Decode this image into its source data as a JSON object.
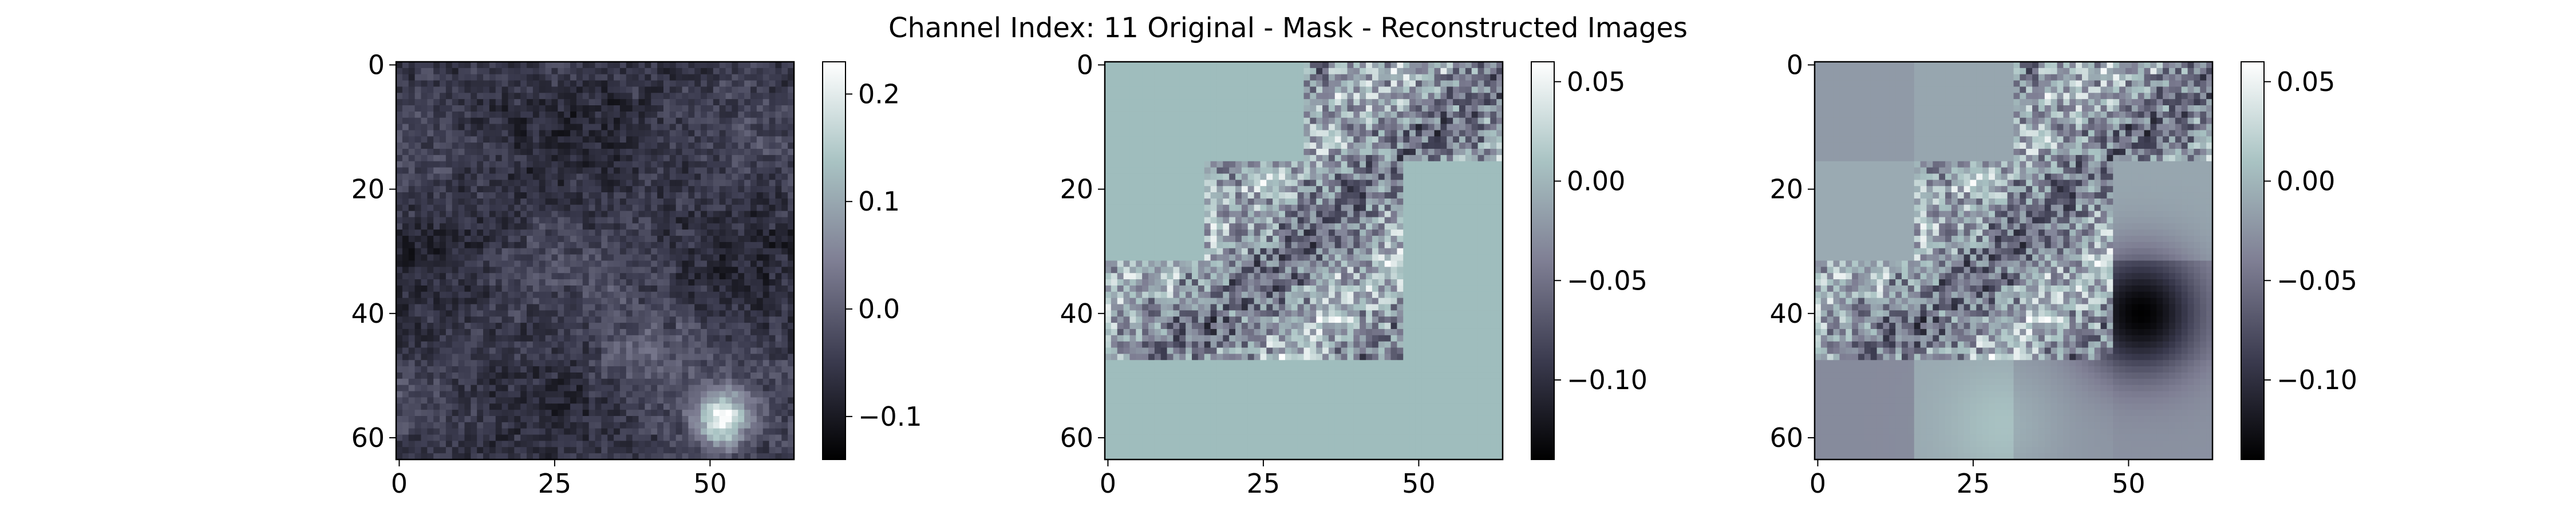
{
  "figure": {
    "title": "Channel Index: 11 Original - Mask - Reconstructed Images"
  },
  "colors": {
    "cmap": [
      "#000000",
      "#3b3b4f",
      "#7f7f94",
      "#a9c3c3",
      "#ffffff"
    ],
    "mask_fill": "#9fbdbd"
  },
  "chart_data": [
    {
      "type": "heatmap",
      "name": "original",
      "grid_size": 64,
      "xlim": [
        0,
        63
      ],
      "ylim": [
        63,
        0
      ],
      "x_ticks": [
        0,
        25,
        50
      ],
      "y_ticks": [
        0,
        20,
        40,
        60
      ],
      "colorbar": {
        "range": [
          -0.14,
          0.23
        ],
        "ticks": [
          0.2,
          0.1,
          0.0,
          -0.1
        ],
        "tick_labels": [
          "0.2",
          "0.1",
          "0.0",
          "−0.1"
        ]
      },
      "mask_regions": [],
      "visible_blocks": "all",
      "notes": "mostly dark purple-gray values, bright spot near (x=52, y=57)"
    },
    {
      "type": "heatmap",
      "name": "mask",
      "grid_size": 64,
      "xlim": [
        0,
        63
      ],
      "ylim": [
        63,
        0
      ],
      "x_ticks": [
        0,
        25,
        50
      ],
      "y_ticks": [
        0,
        20,
        40,
        60
      ],
      "colorbar": {
        "range": [
          -0.14,
          0.06
        ],
        "ticks": [
          0.05,
          0.0,
          -0.05,
          -0.1
        ],
        "tick_labels": [
          "0.05",
          "0.00",
          "−0.05",
          "−0.10"
        ]
      },
      "patch_size": 16,
      "visible_patches": [
        [
          0,
          2
        ],
        [
          0,
          3
        ],
        [
          1,
          1
        ],
        [
          1,
          2
        ],
        [
          2,
          0
        ],
        [
          2,
          1
        ],
        [
          2,
          2
        ]
      ],
      "masked_value": 0.0
    },
    {
      "type": "heatmap",
      "name": "reconstructed",
      "grid_size": 64,
      "xlim": [
        0,
        63
      ],
      "ylim": [
        63,
        0
      ],
      "x_ticks": [
        0,
        25,
        50
      ],
      "y_ticks": [
        0,
        20,
        40,
        60
      ],
      "colorbar": {
        "range": [
          -0.14,
          0.06
        ],
        "ticks": [
          0.05,
          0.0,
          -0.05,
          -0.1
        ],
        "tick_labels": [
          "0.05",
          "0.00",
          "−0.05",
          "−0.10"
        ]
      },
      "patch_size": 16,
      "visible_patches": [
        [
          0,
          2
        ],
        [
          0,
          3
        ],
        [
          1,
          1
        ],
        [
          1,
          2
        ],
        [
          2,
          0
        ],
        [
          2,
          1
        ],
        [
          2,
          2
        ]
      ],
      "notes": "masked patches filled with smooth low-frequency estimates; dark blob near (x=52, y=40)"
    }
  ]
}
